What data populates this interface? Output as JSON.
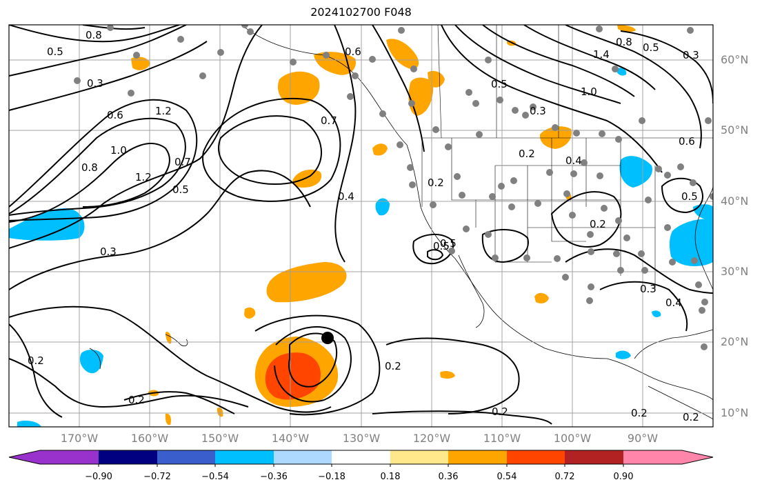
{
  "title": "2024102700 F048",
  "lat_labels": [
    "60°N",
    "50°N",
    "40°N",
    "30°N",
    "20°N",
    "10°N"
  ],
  "lon_labels": [
    "170°W",
    "160°W",
    "150°W",
    "140°W",
    "130°W",
    "120°W",
    "110°W",
    "100°W",
    "90°W"
  ],
  "contour_labels": [
    "0.8",
    "0.5",
    "0.3",
    "0.6",
    "1.2",
    "1.0",
    "0.8",
    "1.2",
    "0.7",
    "0.5",
    "0.3",
    "0.2",
    "0.2",
    "0.7",
    "0.4",
    "0.6",
    "0.5",
    "0.5",
    "0.3",
    "1.0",
    "1.4",
    "0.8",
    "0.5",
    "0.6",
    "0.2",
    "0.4",
    "0.2",
    "0.5",
    "0.3",
    "0.4",
    "0.2",
    "0.2",
    "0.2",
    "0.5",
    "0.2",
    "0.3",
    "0.2"
  ],
  "colorbar": {
    "ticks": [
      "−0.90",
      "−0.72",
      "−0.54",
      "−0.36",
      "−0.18",
      "0.18",
      "0.36",
      "0.54",
      "0.72",
      "0.90"
    ],
    "colors": [
      "#9932cc",
      "#000080",
      "#3a5fcd",
      "#00bfff",
      "#add8ff",
      "#ffffff",
      "#ffe88c",
      "#ffa500",
      "#ff4500",
      "#b22222",
      "#ff85aa",
      "#ff85aa"
    ]
  },
  "colors": {
    "orange": "#ffa500",
    "red_orange": "#ff4500",
    "sky_blue": "#00bfff",
    "station_dot": "#808080",
    "contour": "#000000",
    "grid": "#a0a0a0",
    "axis_label": "#808080"
  }
}
